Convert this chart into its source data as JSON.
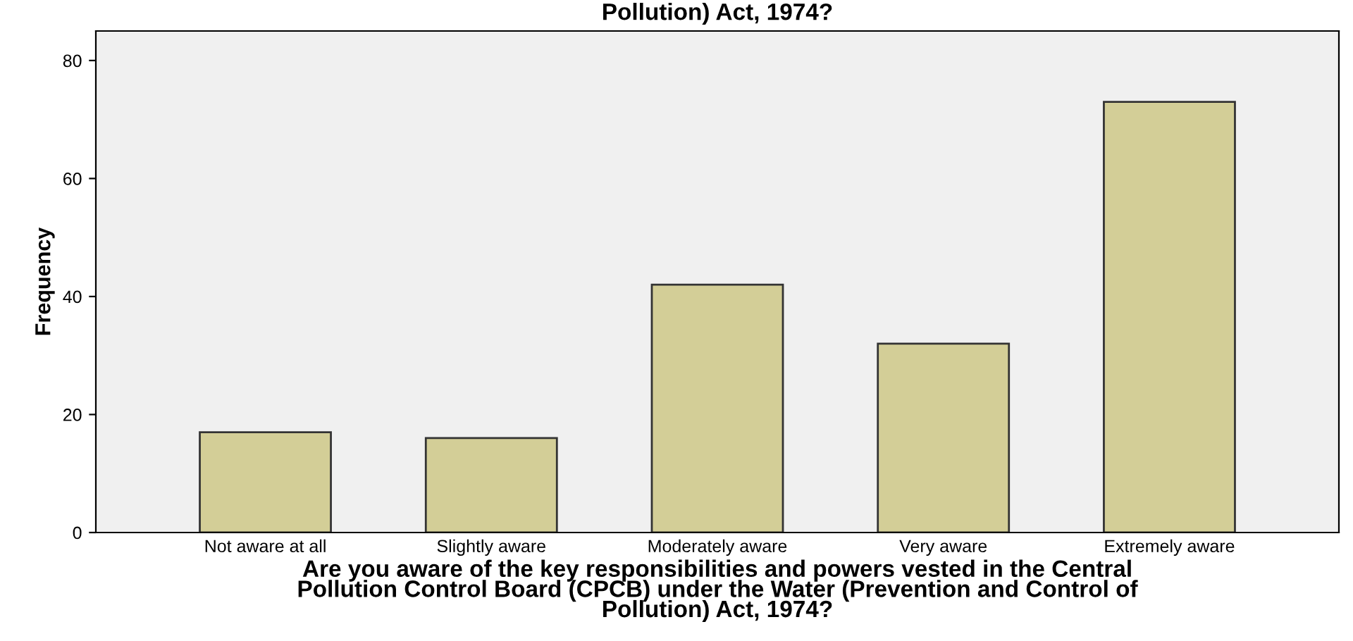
{
  "chart_data": {
    "type": "bar",
    "title": "Pollution) Act, 1974?",
    "xlabel": "Are you aware of the key responsibilities and powers vested in the Central\nPollution Control Board (CPCB) under the Water (Prevention and Control of\nPollution) Act, 1974?",
    "ylabel": "Frequency",
    "categories": [
      "Not aware at all",
      "Slightly aware",
      "Moderately aware",
      "Very aware",
      "Extremely aware"
    ],
    "values": [
      17,
      16,
      42,
      32,
      73
    ],
    "color": "#d3ce97",
    "ylim": [
      0,
      85
    ],
    "yticks": [
      0,
      20,
      40,
      60,
      80
    ],
    "grid": false
  }
}
